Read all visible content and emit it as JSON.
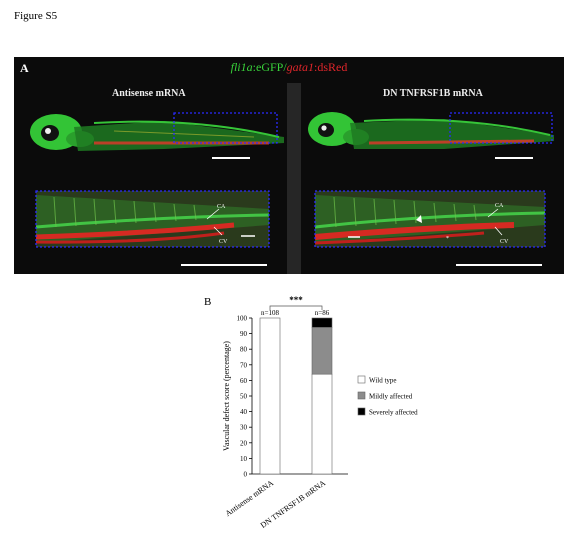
{
  "figure_label": "Figure S5",
  "panel_a": {
    "letter": "A",
    "title_part1": "fli1a",
    "title_part2": ":eGFP/",
    "title_part3": "gata1",
    "title_part4": ":dsRed",
    "left_condition": "Antisense mRNA",
    "right_condition": "DN TNFRSF1B mRNA",
    "label_ca": "CA",
    "label_cv": "CV",
    "label_asterisk": "*",
    "colors": {
      "vessel": "#39d23a",
      "blood": "#e0262b",
      "box": "#2b2bff"
    }
  },
  "panel_b": {
    "letter": "B",
    "significance": "***"
  },
  "chart_data": {
    "type": "bar",
    "stacked": true,
    "categories": [
      "Antisense mRNA",
      "DN TNFRSF1B mRNA"
    ],
    "counts": [
      "n=108",
      "n=86"
    ],
    "series": [
      {
        "name": "Wild type",
        "values": [
          100,
          64
        ],
        "color": "#ffffff"
      },
      {
        "name": "Mildly affected",
        "values": [
          0,
          30
        ],
        "color": "#8c8c8c"
      },
      {
        "name": "Severely affected",
        "values": [
          0,
          6
        ],
        "color": "#000000"
      }
    ],
    "ylabel": "Vascular defect score (percentage)",
    "ylim": [
      0,
      100
    ],
    "yticks": [
      0,
      10,
      20,
      30,
      40,
      50,
      60,
      70,
      80,
      90,
      100
    ],
    "grid": false,
    "legend_position": "right"
  }
}
